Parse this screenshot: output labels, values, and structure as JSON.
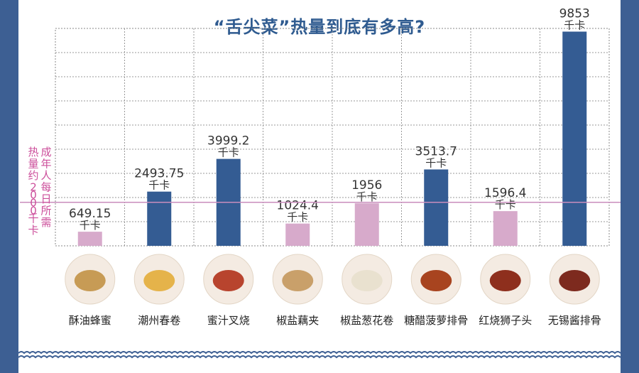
{
  "chart_data": {
    "type": "bar",
    "title": "“舌尖菜”热量到底有多高?",
    "unit": "千卡",
    "categories": [
      "酥油蜂蜜",
      "潮州春卷",
      "蜜汁叉烧",
      "椒盐藕夹",
      "椒盐葱花卷",
      "糖醋菠萝排骨",
      "红烧狮子头",
      "无锡酱排骨"
    ],
    "value_labels": [
      "649.15",
      "2493.75",
      "3999.2",
      "1024.4",
      "1956",
      "3513.7",
      "1596.4",
      "9853"
    ],
    "values": [
      649.15,
      2493.75,
      3999.2,
      1024.4,
      1956,
      3513.7,
      1596.4,
      9853
    ],
    "bar_colors": [
      "#d7aacb",
      "#345c93",
      "#345c93",
      "#d7aacb",
      "#d7aacb",
      "#345c93",
      "#d7aacb",
      "#345c93"
    ],
    "reference_line": {
      "value": 2000,
      "label": "成年人每日所需热量约2000千卡",
      "color": "#c88dbc"
    },
    "ylim": [
      0,
      10000
    ],
    "grid": true,
    "legend": "none",
    "food_icons": [
      "butter-honey-photo",
      "spring-roll-photo",
      "char-siu-photo",
      "lotus-sandwich-photo",
      "scallion-roll-photo",
      "pineapple-ribs-photo",
      "lion-head-meatball-photo",
      "wuxi-ribs-photo"
    ]
  }
}
